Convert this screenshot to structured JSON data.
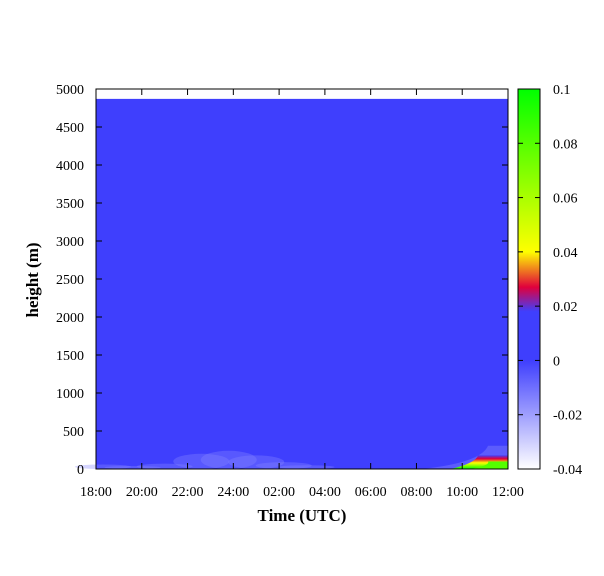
{
  "chart_data": {
    "type": "heatmap",
    "title": "",
    "xlabel": "Time (UTC)",
    "ylabel": "height (m)",
    "x_tick_labels": [
      "18:00",
      "20:00",
      "22:00",
      "24:00",
      "02:00",
      "04:00",
      "06:00",
      "08:00",
      "10:00",
      "12:00"
    ],
    "x_range_hours": [
      0,
      18
    ],
    "y_ticks": [
      0,
      500,
      1000,
      1500,
      2000,
      2500,
      3000,
      3500,
      4000,
      4500,
      5000
    ],
    "ylim": [
      0,
      5000
    ],
    "data_top_height": 4870,
    "background_value": 0.0,
    "colorbar": {
      "range": [
        -0.04,
        0.1
      ],
      "ticks": [
        -0.04,
        -0.02,
        0,
        0.02,
        0.04,
        0.06,
        0.08,
        0.1
      ],
      "tick_labels": [
        "-0.04",
        "-0.02",
        "0",
        "0.02",
        "0.04",
        "0.06",
        "0.08",
        "0.1"
      ],
      "stops": [
        {
          "value": -0.04,
          "color": "#ffffff"
        },
        {
          "value": 0.0,
          "color": "#3f3ffd"
        },
        {
          "value": 0.018,
          "color": "#3f3ffd"
        },
        {
          "value": 0.027,
          "color": "#e0003c"
        },
        {
          "value": 0.04,
          "color": "#ffff00"
        },
        {
          "value": 0.1,
          "color": "#00ff00"
        }
      ]
    },
    "features": [
      {
        "name": "surface positive flux",
        "time_start_h": 15.5,
        "time_end_h": 18,
        "height_max": 180,
        "peak_value": 0.08
      },
      {
        "name": "near-surface negative wisps",
        "time_start_h": 0,
        "time_end_h": 10,
        "height_max": 260,
        "peak_value": -0.015
      }
    ]
  }
}
